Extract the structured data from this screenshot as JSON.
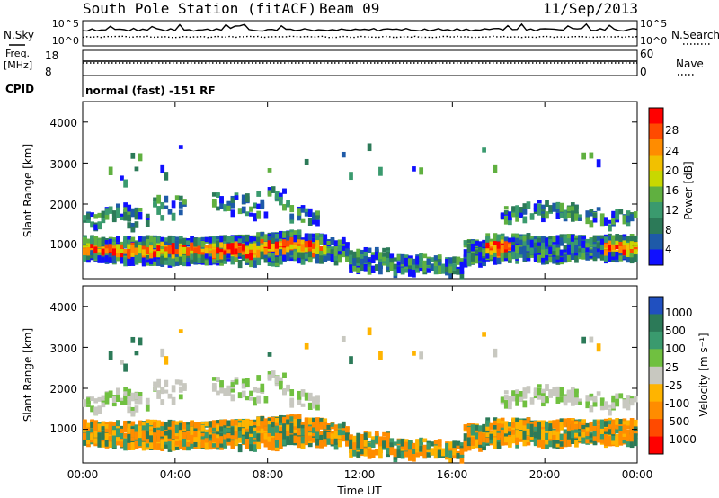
{
  "header": {
    "title": "South Pole Station (fitACF)",
    "beam": "Beam 09",
    "date": "11/Sep/2013"
  },
  "status_panels": {
    "nsky_label": "N.Sky",
    "nsky_ticks": [
      "10^5",
      "10^0"
    ],
    "nsearch_label": "N.Search",
    "nsearch_ticks": [
      "10^5",
      "10^0"
    ],
    "freq_label_line1": "Freq.",
    "freq_label_line2": "[MHz]",
    "freq_ticks": [
      "18",
      "8"
    ],
    "nave_label": "Nave",
    "nave_ticks": [
      "60",
      "0"
    ],
    "cpid_label": "CPID",
    "cpid_text": "normal (fast) -151 RF"
  },
  "chart_data": [
    {
      "type": "heatmap",
      "name": "power",
      "ylabel": "Slant Range [km]",
      "yticks": [
        "4000",
        "3000",
        "2000",
        "1000"
      ],
      "ylim": [
        180,
        4500
      ],
      "colorbar_label": "Power [dB]",
      "colorbar_ticks": [
        "28",
        "24",
        "20",
        "16",
        "12",
        "8",
        "4"
      ],
      "colors": [
        "#ff0000",
        "#ff4a00",
        "#ff8c00",
        "#f2c000",
        "#c8d800",
        "#60b040",
        "#3a9a6e",
        "#2c7a58",
        "#1e5aa8",
        "#1010ff"
      ]
    },
    {
      "type": "heatmap",
      "name": "velocity",
      "ylabel": "Slant Range [km]",
      "yticks": [
        "4000",
        "3000",
        "2000",
        "1000"
      ],
      "ylim": [
        180,
        4500
      ],
      "colorbar_label": "Velocity [m s⁻¹]",
      "colorbar_ticks": [
        "1000",
        "500",
        "100",
        "25",
        "-25",
        "-100",
        "-500",
        "-1000"
      ],
      "colors": [
        "#2050c0",
        "#2c7a58",
        "#3a9a6e",
        "#70c040",
        "#c8c8c0",
        "#ffb400",
        "#ff8c00",
        "#ff4a00",
        "#ff0000"
      ]
    }
  ],
  "xaxis": {
    "label": "Time UT",
    "ticks": [
      "00:00",
      "04:00",
      "08:00",
      "12:00",
      "16:00",
      "20:00",
      "00:00"
    ]
  }
}
